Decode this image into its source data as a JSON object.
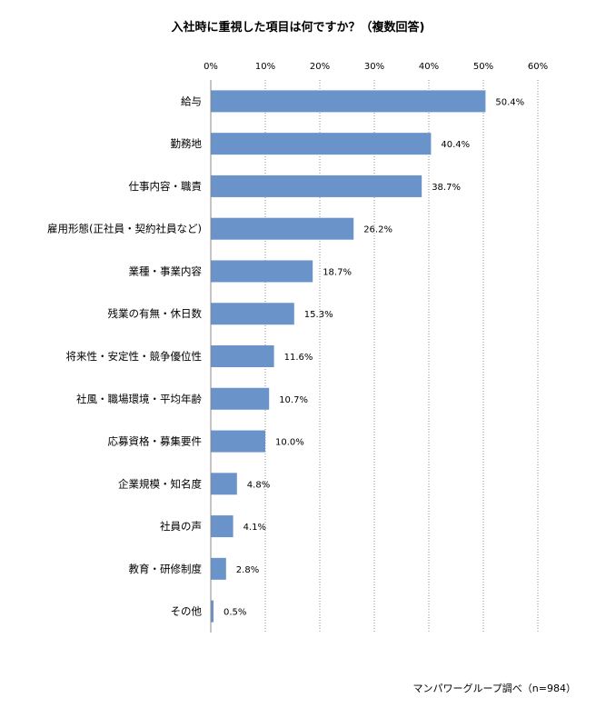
{
  "chart_data": {
    "type": "bar",
    "orientation": "horizontal",
    "title": "入社時に重視した項目は何ですか？（複数回答)",
    "categories": [
      "給与",
      "勤務地",
      "仕事内容・職責",
      "雇用形態(正社員・契約社員など)",
      "業種・事業内容",
      "残業の有無・休日数",
      "将来性・安定性・競争優位性",
      "社風・職場環境・平均年齢",
      "応募資格・募集要件",
      "企業規模・知名度",
      "社員の声",
      "教育・研修制度",
      "その他"
    ],
    "values": [
      50.4,
      40.4,
      38.7,
      26.2,
      18.7,
      15.3,
      11.6,
      10.7,
      10.0,
      4.8,
      4.1,
      2.8,
      0.5
    ],
    "value_labels": [
      "50.4%",
      "40.4%",
      "38.7%",
      "26.2%",
      "18.7%",
      "15.3%",
      "11.6%",
      "10.7%",
      "10.0%",
      "4.8%",
      "4.1%",
      "2.8%",
      "0.5%"
    ],
    "xlim": [
      0,
      60
    ],
    "xticks": [
      "0%",
      "10%",
      "20%",
      "30%",
      "40%",
      "50%",
      "60%"
    ],
    "x_axis_position": "top",
    "grid": "vertical dotted",
    "bar_color": "#6a93c9",
    "source": "マンパワーグループ調べ（n=984）"
  }
}
